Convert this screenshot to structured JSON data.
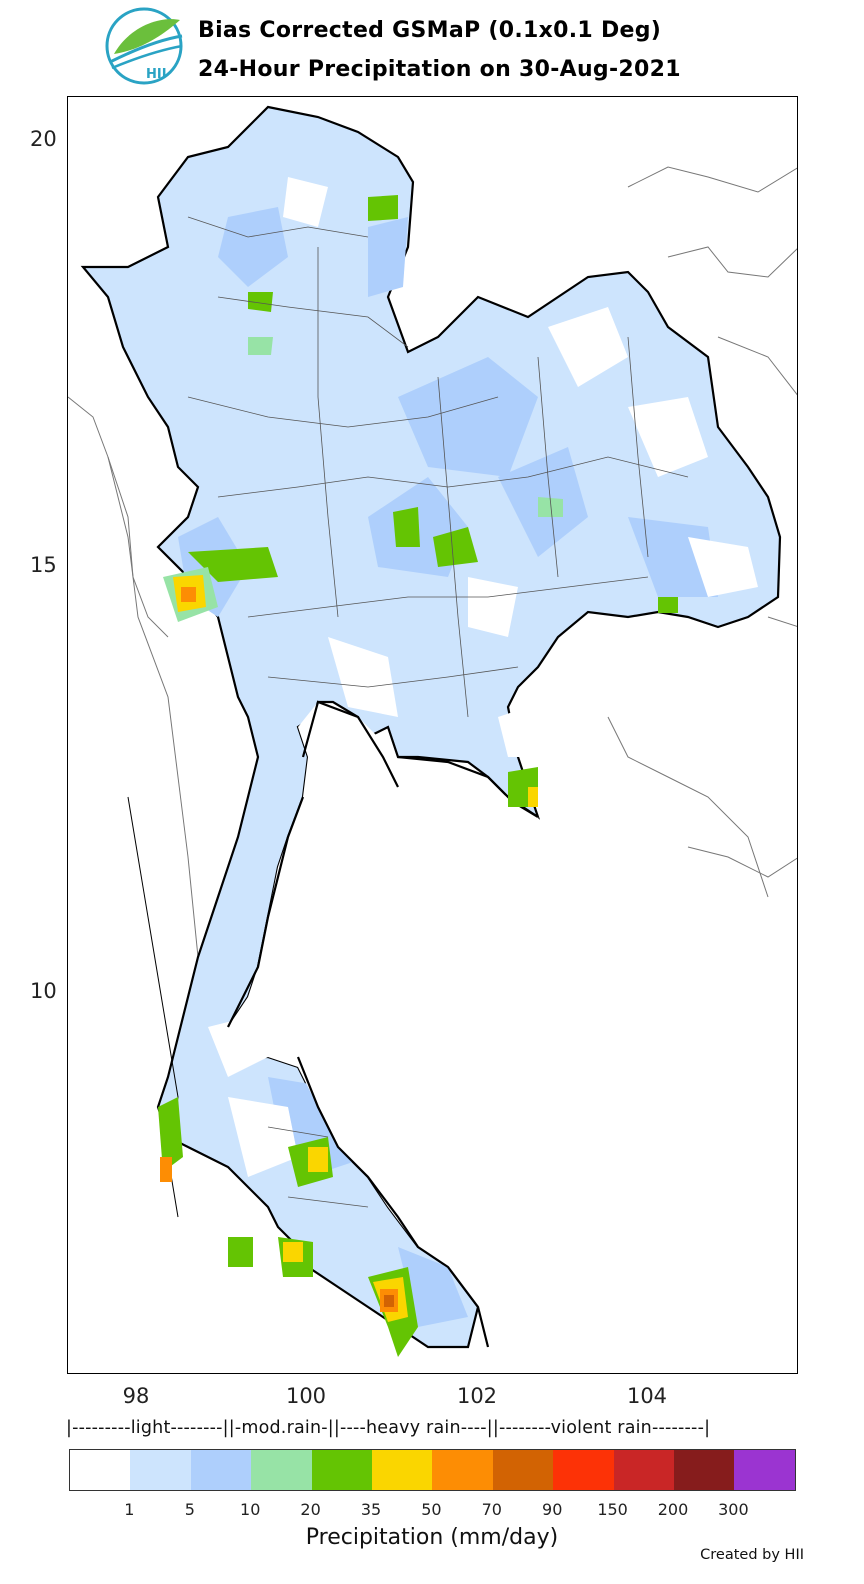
{
  "header": {
    "title_line1": "Bias Corrected GSMaP (0.1x0.1 Deg)",
    "title_line2": "24-Hour Precipitation on 30-Aug-2021",
    "logo_text": "HII"
  },
  "map": {
    "y_ticks": [
      "20",
      "15",
      "10"
    ],
    "x_ticks": [
      "98",
      "100",
      "102",
      "104"
    ],
    "extent": {
      "lon": [
        97.0,
        105.7
      ],
      "lat": [
        5.4,
        20.5
      ]
    }
  },
  "legend": {
    "category_line": "|---------light--------||-mod.rain-||----heavy rain----||--------violent rain--------|",
    "colors": [
      "#ffffff",
      "#cde4fd",
      "#aecffc",
      "#97e3a6",
      "#64c403",
      "#fad600",
      "#fd8d04",
      "#d26303",
      "#fd3206",
      "#c92626",
      "#861c1c",
      "#9b34d1"
    ],
    "ticks": [
      "1",
      "5",
      "10",
      "20",
      "35",
      "50",
      "70",
      "90",
      "150",
      "200",
      "300"
    ],
    "axis_title": "Precipitation (mm/day)"
  },
  "footer": {
    "credit": "Created by HII"
  }
}
